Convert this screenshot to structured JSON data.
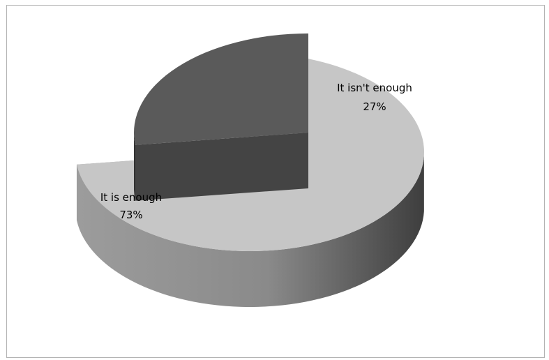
{
  "chart_data": {
    "type": "pie",
    "style": "3d-exploded",
    "slices": [
      {
        "label": "It is enough",
        "value": 73,
        "value_label": "73%",
        "color": "#c6c6c6",
        "exploded": false
      },
      {
        "label": "It isn't enough",
        "value": 27,
        "value_label": "27%",
        "color": "#5a5a5a",
        "exploded": true
      }
    ],
    "legend": "none"
  }
}
